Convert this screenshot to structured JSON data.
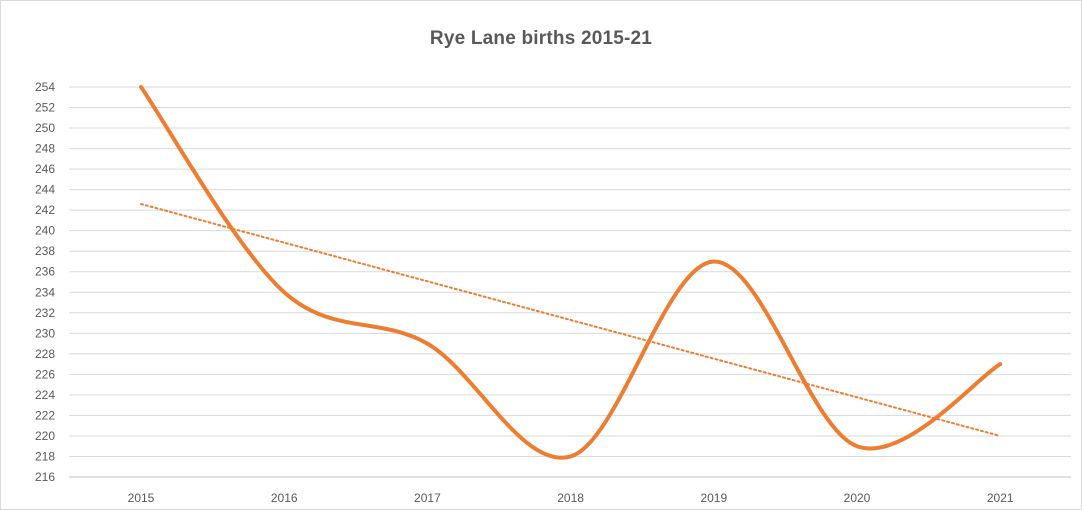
{
  "chart_data": {
    "type": "line",
    "title": "Rye Lane births 2015-21",
    "xlabel": "",
    "ylabel": "",
    "categories": [
      "2015",
      "2016",
      "2017",
      "2018",
      "2019",
      "2020",
      "2021"
    ],
    "series": [
      {
        "values": [
          254,
          234,
          229,
          218,
          237,
          219,
          227
        ],
        "color": "#ED7D31",
        "smooth": true
      }
    ],
    "trendline": {
      "type": "linear",
      "style": "dotted",
      "color": "#ED7D31",
      "start": 242.6,
      "end": 220.0
    },
    "ylim": [
      216,
      254
    ],
    "y_ticks": [
      216,
      218,
      220,
      222,
      224,
      226,
      228,
      230,
      232,
      234,
      236,
      238,
      240,
      242,
      244,
      246,
      248,
      250,
      252,
      254
    ],
    "grid": true,
    "legend": "none"
  }
}
